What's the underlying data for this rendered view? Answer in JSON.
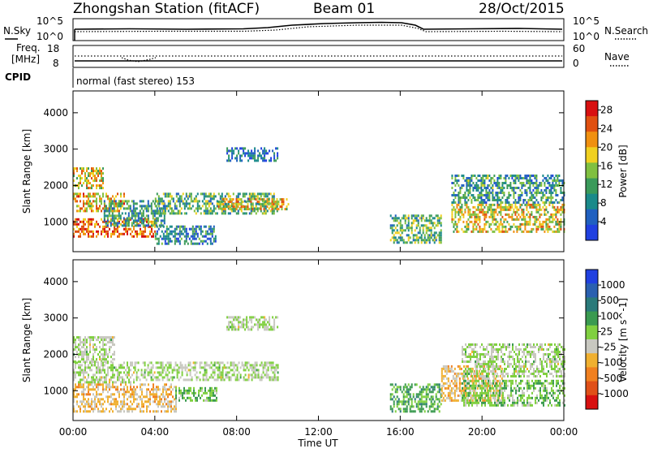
{
  "header": {
    "station_title": "Zhongshan Station (fitACF)",
    "beam": "Beam 01",
    "date": "28/Oct/2015"
  },
  "status_panels": {
    "noise": {
      "left_label": "N.Sky",
      "right_label": "N.Search",
      "left_ticks": [
        "10^5",
        "10^0"
      ],
      "right_ticks": [
        "10^5",
        "10^0"
      ]
    },
    "frequency": {
      "left_label_line1": "Freq.",
      "left_label_line2": "[MHz]",
      "right_label": "Nave",
      "left_ticks": [
        "18",
        "8"
      ],
      "right_ticks": [
        "60",
        "0"
      ]
    },
    "cpid": {
      "label": "CPID",
      "text": "normal (fast stereo) 153"
    }
  },
  "colors": {
    "power_scale": [
      "#2040e0",
      "#2060c0",
      "#1a8a8a",
      "#3a9a5a",
      "#80c040",
      "#f0d020",
      "#f09010",
      "#e05010",
      "#d81010"
    ],
    "velocity_scale": [
      "#2040e0",
      "#2a60b0",
      "#2a7a7a",
      "#3a9a50",
      "#80d040",
      "#c8c8c0",
      "#f0b030",
      "#f08020",
      "#e05018",
      "#d81010"
    ],
    "ground_scatter": "#c0c0b8"
  },
  "chart_data": [
    {
      "type": "heatmap",
      "title": "Power",
      "xlabel": "",
      "ylabel": "Slant Range [km]",
      "xlim": [
        0,
        24
      ],
      "ylim": [
        180,
        4600
      ],
      "x_ticks": [
        "00:00",
        "04:00",
        "08:00",
        "12:00",
        "16:00",
        "20:00",
        "00:00"
      ],
      "y_ticks": [
        "1000",
        "2000",
        "3000",
        "4000"
      ],
      "colorbar": {
        "label": "Power [dB]",
        "ticks": [
          "4",
          "8",
          "12",
          "16",
          "20",
          "24",
          "28"
        ],
        "range": [
          0,
          30
        ]
      },
      "regions": [
        {
          "t0": 0.0,
          "t1": 1.5,
          "r0": 1900,
          "r1": 2500,
          "value": 18
        },
        {
          "t0": 0.0,
          "t1": 2.5,
          "r0": 1300,
          "r1": 1800,
          "value": 20
        },
        {
          "t0": 0.0,
          "t1": 4.0,
          "r0": 600,
          "r1": 1100,
          "value": 24
        },
        {
          "t0": 1.5,
          "t1": 4.5,
          "r0": 900,
          "r1": 1600,
          "value": 10
        },
        {
          "t0": 4.0,
          "t1": 10.0,
          "r0": 1200,
          "r1": 1800,
          "value": 12
        },
        {
          "t0": 7.0,
          "t1": 10.5,
          "r0": 1350,
          "r1": 1650,
          "value": 18
        },
        {
          "t0": 7.5,
          "t1": 10.0,
          "r0": 2700,
          "r1": 3050,
          "value": 6
        },
        {
          "t0": 4.0,
          "t1": 7.0,
          "r0": 400,
          "r1": 900,
          "value": 8
        },
        {
          "t0": 15.5,
          "t1": 18.0,
          "r0": 400,
          "r1": 1200,
          "value": 12
        },
        {
          "t0": 18.5,
          "t1": 24.0,
          "r0": 700,
          "r1": 1500,
          "value": 18
        },
        {
          "t0": 18.5,
          "t1": 24.0,
          "r0": 1500,
          "r1": 2300,
          "value": 10
        }
      ]
    },
    {
      "type": "heatmap",
      "title": "Velocity",
      "xlabel": "Time UT",
      "ylabel": "Slant Range [km]",
      "xlim": [
        0,
        24
      ],
      "ylim": [
        180,
        4600
      ],
      "x_ticks": [
        "00:00",
        "04:00",
        "08:00",
        "12:00",
        "16:00",
        "20:00",
        "00:00"
      ],
      "y_ticks": [
        "1000",
        "2000",
        "3000",
        "4000"
      ],
      "colorbar": {
        "label": "Velocity [m s^-1]",
        "ticks": [
          "1000",
          "500",
          "100",
          "25",
          "-25",
          "-100",
          "-500",
          "-1000"
        ],
        "range": [
          -1200,
          1200
        ]
      },
      "regions": [
        {
          "t0": 0.0,
          "t1": 2.0,
          "r0": 1800,
          "r1": 2500,
          "value": 0
        },
        {
          "t0": 0.0,
          "t1": 3.0,
          "r0": 1250,
          "r1": 1800,
          "value": 0
        },
        {
          "t0": 3.0,
          "t1": 10.0,
          "r0": 1300,
          "r1": 1800,
          "value": 0
        },
        {
          "t0": 0.0,
          "t1": 5.0,
          "r0": 400,
          "r1": 1200,
          "value": -300
        },
        {
          "t0": 5.0,
          "t1": 7.0,
          "r0": 700,
          "r1": 1100,
          "value": 200
        },
        {
          "t0": 7.5,
          "t1": 10.0,
          "r0": 2700,
          "r1": 3050,
          "value": 0
        },
        {
          "t0": 15.5,
          "t1": 18.0,
          "r0": 400,
          "r1": 1200,
          "value": 300
        },
        {
          "t0": 18.0,
          "t1": 21.0,
          "r0": 700,
          "r1": 1700,
          "value": -300
        },
        {
          "t0": 19.0,
          "t1": 24.0,
          "r0": 600,
          "r1": 1300,
          "value": 150
        },
        {
          "t0": 19.0,
          "t1": 24.0,
          "r0": 1400,
          "r1": 2300,
          "value": 0
        }
      ]
    }
  ]
}
